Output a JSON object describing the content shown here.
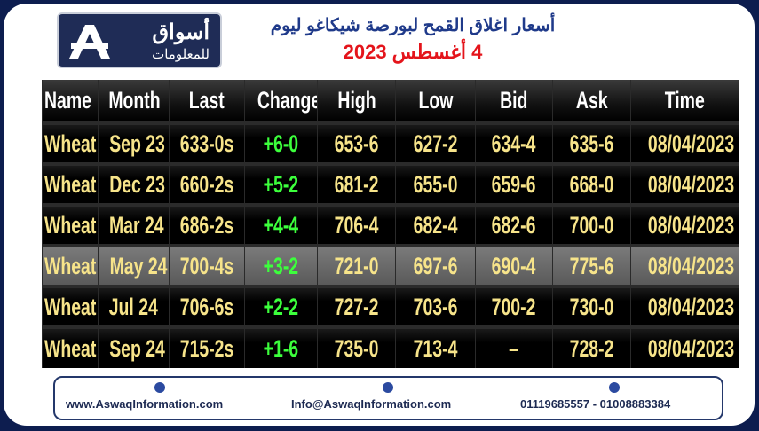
{
  "header": {
    "logo_name": "أسواق",
    "logo_sub": "للمعلومات",
    "title": "أسعار اغلاق القمح لبورصة شيكاغو ليوم",
    "date": "4 أغسطس 2023"
  },
  "table": {
    "columns": [
      "Name",
      "Month",
      "Last",
      "Change",
      "High",
      "Low",
      "Bid",
      "Ask",
      "Time"
    ],
    "rows": [
      [
        "Wheat",
        "Sep 23",
        "633-0s",
        "+6-0",
        "653-6",
        "627-2",
        "634-4",
        "635-6",
        "08/04/2023"
      ],
      [
        "Wheat",
        "Dec 23",
        "660-2s",
        "+5-2",
        "681-2",
        "655-0",
        "659-6",
        "668-0",
        "08/04/2023"
      ],
      [
        "Wheat",
        "Mar 24",
        "686-2s",
        "+4-4",
        "706-4",
        "682-4",
        "682-6",
        "700-0",
        "08/04/2023"
      ],
      [
        "Wheat",
        "May 24",
        "700-4s",
        "+3-2",
        "721-0",
        "697-6",
        "690-4",
        "775-6",
        "08/04/2023"
      ],
      [
        "Wheat",
        "Jul 24",
        "706-6s",
        "+2-2",
        "727-2",
        "703-6",
        "700-2",
        "730-0",
        "08/04/2023"
      ],
      [
        "Wheat",
        "Sep 24",
        "715-2s",
        "+1-6",
        "735-0",
        "713-4",
        "–",
        "728-2",
        "08/04/2023"
      ]
    ]
  },
  "footer": {
    "website": "www.AswaqInformation.com",
    "email": "Info@AswaqInformation.com",
    "phones": "01119685557 - 01008883384"
  }
}
